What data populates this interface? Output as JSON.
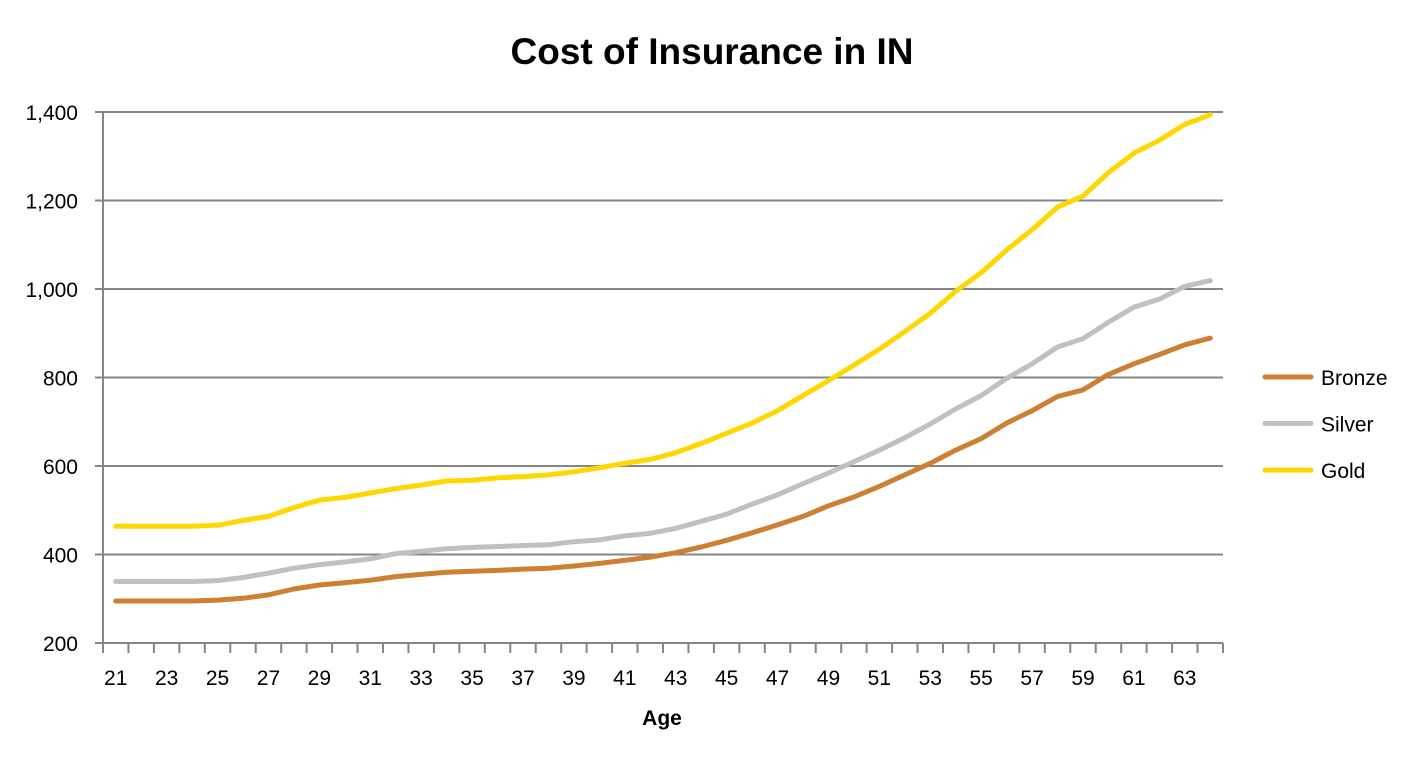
{
  "chart_data": {
    "type": "line",
    "title": "Cost of Insurance in IN",
    "xlabel": "Age",
    "ylabel": "",
    "x": [
      21,
      22,
      23,
      24,
      25,
      26,
      27,
      28,
      29,
      30,
      31,
      32,
      33,
      34,
      35,
      36,
      37,
      38,
      39,
      40,
      41,
      42,
      43,
      44,
      45,
      46,
      47,
      48,
      49,
      50,
      51,
      52,
      53,
      54,
      55,
      56,
      57,
      58,
      59,
      60,
      61,
      62,
      63,
      64
    ],
    "x_tick_labels": [
      "21",
      "23",
      "25",
      "27",
      "29",
      "31",
      "33",
      "35",
      "37",
      "39",
      "41",
      "43",
      "45",
      "47",
      "49",
      "51",
      "53",
      "55",
      "57",
      "59",
      "61",
      "63"
    ],
    "ylim": [
      200,
      1400
    ],
    "y_ticks": [
      200,
      400,
      600,
      800,
      1000,
      1200,
      1400
    ],
    "y_tick_labels": [
      "200",
      "400",
      "600",
      "800",
      "1,000",
      "1,200",
      "1,400"
    ],
    "grid": "horizontal",
    "legend_position": "right",
    "series": [
      {
        "name": "Bronze",
        "color": "#CD7F32",
        "values": [
          295,
          295,
          295,
          295,
          297,
          301,
          309,
          322,
          331,
          336,
          342,
          350,
          355,
          360,
          362,
          364,
          367,
          369,
          374,
          380,
          387,
          394,
          404,
          417,
          432,
          449,
          467,
          486,
          510,
          530,
          554,
          580,
          606,
          636,
          662,
          697,
          725,
          757,
          772,
          807,
          831,
          852,
          874,
          889
        ]
      },
      {
        "name": "Silver",
        "color": "#C0C0C0",
        "values": [
          339,
          339,
          339,
          339,
          341,
          348,
          358,
          369,
          377,
          383,
          390,
          402,
          407,
          413,
          416,
          418,
          420,
          422,
          429,
          433,
          442,
          448,
          459,
          475,
          491,
          514,
          535,
          560,
          584,
          610,
          636,
          664,
          695,
          729,
          759,
          798,
          831,
          869,
          888,
          925,
          959,
          977,
          1006,
          1019
        ]
      },
      {
        "name": "Gold",
        "color": "#FFD700",
        "values": [
          464,
          464,
          464,
          464,
          466,
          477,
          486,
          506,
          523,
          529,
          539,
          549,
          557,
          566,
          568,
          573,
          576,
          580,
          587,
          596,
          606,
          615,
          630,
          651,
          674,
          697,
          725,
          759,
          793,
          828,
          864,
          904,
          945,
          995,
          1037,
          1088,
          1134,
          1185,
          1210,
          1263,
          1307,
          1336,
          1372,
          1394
        ]
      }
    ]
  }
}
